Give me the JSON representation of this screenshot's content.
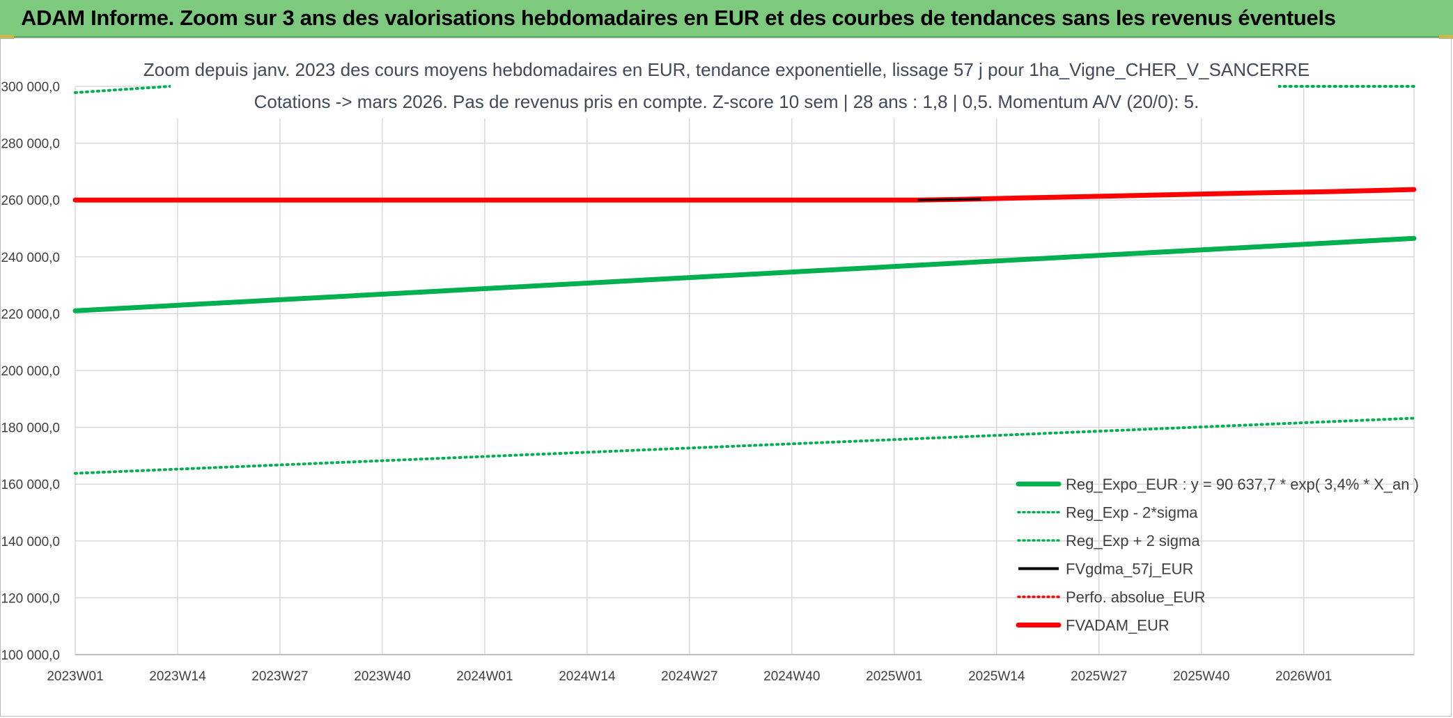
{
  "banner": {
    "title": "ADAM Informe. Zoom sur 3 ans des valorisations hebdomadaires en EUR et des courbes de tendances sans les revenus éventuels"
  },
  "colors": {
    "banner_bg": "#7dc97d",
    "green": "#00b050",
    "red": "#ff0000",
    "black": "#000000",
    "grid": "#d9d9d9"
  },
  "chart_data": {
    "type": "line",
    "title_lines": [
      "Zoom depuis janv. 2023 des cours moyens hebdomadaires en EUR, tendance exponentielle, lissage 57 j pour 1ha_Vigne_CHER_V_SANCERRE",
      "Cotations -> mars 2026. Pas de revenus pris en compte. Z-score 10 sem | 28 ans : 1,8 | 0,5. Momentum A/V (20/0): 5."
    ],
    "x_tick_labels": [
      "2023W01",
      "2023W14",
      "2023W27",
      "2023W40",
      "2024W01",
      "2024W14",
      "2024W27",
      "2024W40",
      "2025W01",
      "2025W14",
      "2025W27",
      "2025W40",
      "2026W01"
    ],
    "x_range_weeks": [
      0,
      170
    ],
    "y_tick_labels": [
      "100 000,0",
      "120 000,0",
      "140 000,0",
      "160 000,0",
      "180 000,0",
      "200 000,0",
      "220 000,0",
      "240 000,0",
      "260 000,0",
      "280 000,0",
      "300 000,0"
    ],
    "ylim": [
      100000,
      300000
    ],
    "grid": true,
    "legend_position": "bottom-right",
    "series": [
      {
        "name": "Reg_Expo_EUR : y = 90 637,7 * exp( 3,4% *  X_an )",
        "style": "solid-thick",
        "color": "#00b050",
        "x": [
          0,
          170
        ],
        "y": [
          221000,
          246500
        ]
      },
      {
        "name": "Reg_Exp - 2*sigma",
        "style": "dotted",
        "color": "#00b050",
        "x": [
          0,
          170
        ],
        "y": [
          163800,
          183200
        ]
      },
      {
        "name": "Reg_Exp + 2 sigma",
        "style": "dotted",
        "color": "#00b050",
        "x": [
          0,
          12,
          153,
          170
        ],
        "y": [
          297800,
          300000,
          300000,
          300000
        ],
        "hidden_ranges": [
          [
            12,
            153
          ]
        ]
      },
      {
        "name": "FVgdma_57j_EUR",
        "style": "solid",
        "color": "#000000",
        "x": [
          107,
          115
        ],
        "y": [
          260000,
          260300
        ]
      },
      {
        "name": "Perfo. absolue_EUR",
        "style": "dotted",
        "color": "#ff0000",
        "x": [],
        "y": []
      },
      {
        "name": "FVADAM_EUR",
        "style": "solid-thick",
        "color": "#ff0000",
        "x": [
          0,
          107,
          112,
          120,
          130,
          140,
          150,
          160,
          170
        ],
        "y": [
          260000,
          260000,
          260200,
          260700,
          261300,
          261900,
          262500,
          263000,
          263700
        ]
      }
    ]
  }
}
